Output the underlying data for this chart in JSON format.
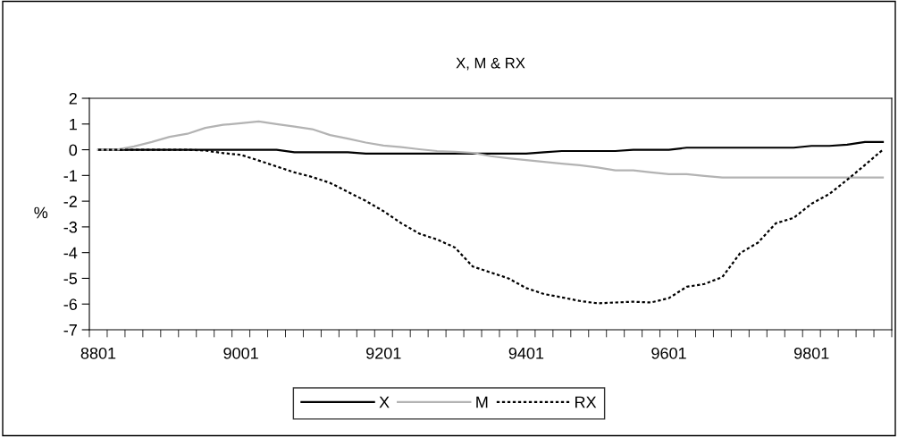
{
  "chart_data": {
    "type": "line",
    "title": "X, M & RX",
    "ylabel": "%",
    "categories": [
      "8801",
      null,
      null,
      null,
      null,
      null,
      null,
      null,
      "9001",
      null,
      null,
      null,
      null,
      null,
      null,
      null,
      "9201",
      null,
      null,
      null,
      null,
      null,
      null,
      null,
      "9401",
      null,
      null,
      null,
      null,
      null,
      null,
      null,
      "9601",
      null,
      null,
      null,
      null,
      null,
      null,
      null,
      "9801",
      null,
      null,
      null,
      null
    ],
    "series": [
      {
        "name": "X",
        "color": "#000000",
        "line_style": "solid",
        "values": [
          0,
          0,
          0,
          0,
          0,
          0,
          0,
          0,
          0,
          0,
          0,
          -0.1,
          -0.1,
          -0.1,
          -0.1,
          -0.15,
          -0.15,
          -0.15,
          -0.15,
          -0.15,
          -0.15,
          -0.15,
          -0.15,
          -0.15,
          -0.15,
          -0.1,
          -0.05,
          -0.05,
          -0.05,
          -0.05,
          0,
          0,
          0,
          0.08,
          0.08,
          0.08,
          0.08,
          0.08,
          0.08,
          0.08,
          0.15,
          0.15,
          0.2,
          0.3,
          0.3
        ]
      },
      {
        "name": "M",
        "color": "#b3b3b3",
        "line_style": "solid",
        "values": [
          0,
          0,
          0.13,
          0.3,
          0.5,
          0.62,
          0.85,
          0.97,
          1.03,
          1.1,
          1.0,
          0.9,
          0.8,
          0.57,
          0.43,
          0.28,
          0.16,
          0.1,
          0.02,
          -0.05,
          -0.08,
          -0.12,
          -0.25,
          -0.33,
          -0.4,
          -0.47,
          -0.54,
          -0.6,
          -0.69,
          -0.8,
          -0.8,
          -0.88,
          -0.95,
          -0.95,
          -1.02,
          -1.08,
          -1.08,
          -1.08,
          -1.08,
          -1.08,
          -1.08,
          -1.08,
          -1.08,
          -1.08,
          -1.08
        ]
      },
      {
        "name": "RX",
        "color": "#000000",
        "line_style": "dotted",
        "values": [
          0,
          0,
          0,
          0,
          0,
          0,
          -0.03,
          -0.13,
          -0.2,
          -0.42,
          -0.65,
          -0.88,
          -1.06,
          -1.29,
          -1.64,
          -1.99,
          -2.39,
          -2.86,
          -3.26,
          -3.49,
          -3.8,
          -4.54,
          -4.77,
          -5.0,
          -5.38,
          -5.61,
          -5.74,
          -5.88,
          -5.97,
          -5.94,
          -5.91,
          -5.94,
          -5.77,
          -5.33,
          -5.22,
          -4.95,
          -4.02,
          -3.61,
          -2.86,
          -2.65,
          -2.1,
          -1.72,
          -1.17,
          -0.59,
          0
        ]
      }
    ],
    "ylim": [
      -7,
      2
    ],
    "yticks": [
      -7,
      -6,
      -5,
      -4,
      -3,
      -2,
      -1,
      0,
      1,
      2
    ],
    "grid": false,
    "legend": "bottom",
    "marker": "none"
  }
}
